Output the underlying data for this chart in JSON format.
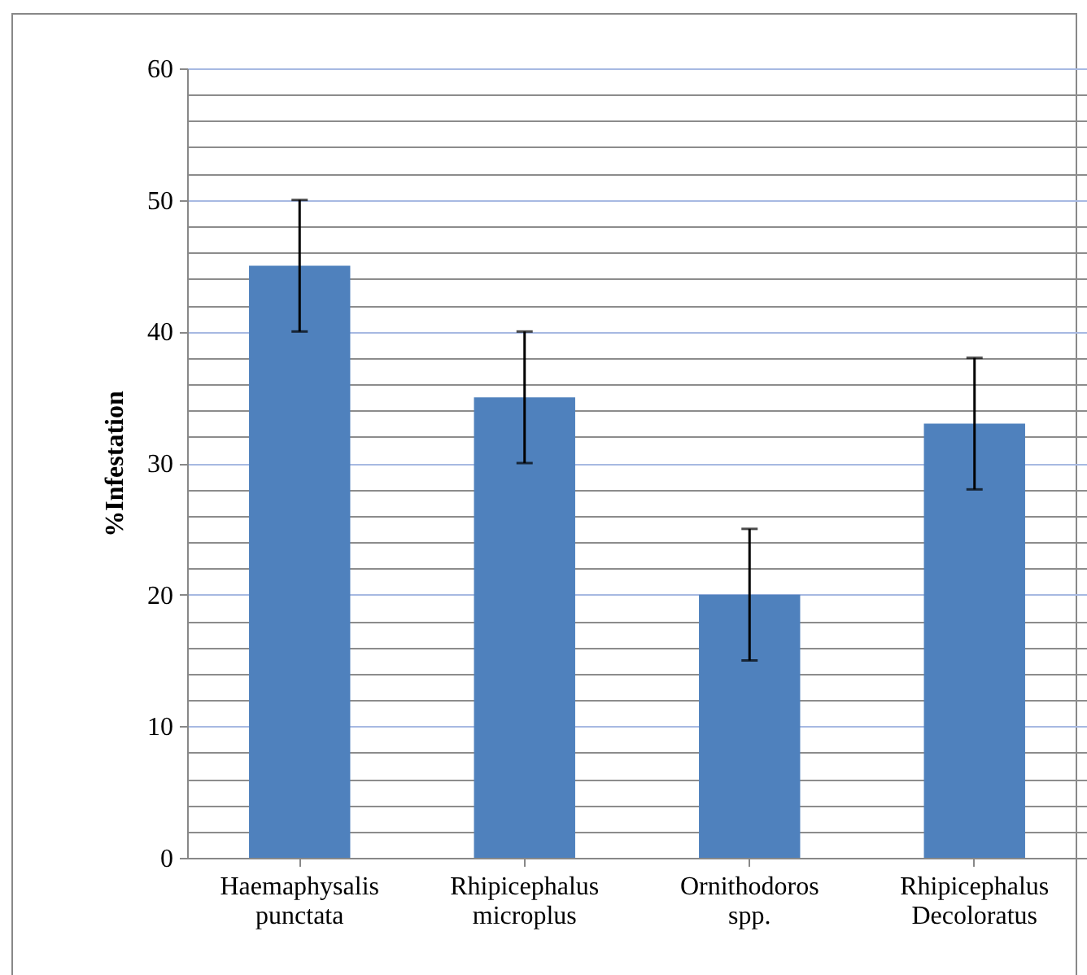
{
  "chart_data": {
    "type": "bar",
    "ylabel": "%Infestation",
    "categories": [
      "Haemaphysalis punctata",
      "Rhipicephalus microplus",
      "Ornithodoros spp.",
      "Rhipicephalus Decoloratus"
    ],
    "values": [
      45,
      35,
      20,
      33
    ],
    "errors": [
      5,
      5,
      5,
      5
    ],
    "color": "#4f81bd",
    "ylim": [
      0,
      60
    ],
    "yticks": [
      0,
      {
        "value": 2,
        "label": null
      },
      {
        "value": 4,
        "label": null
      },
      {
        "value": 6,
        "label": null
      },
      {
        "value": 8,
        "label": null
      },
      10,
      {
        "value": 12,
        "label": null
      },
      {
        "value": 14,
        "label": null
      },
      {
        "value": 16,
        "label": null
      },
      {
        "value": 18,
        "label": null
      },
      20,
      {
        "value": 22,
        "label": null
      },
      {
        "value": 24,
        "label": null
      },
      {
        "value": 26,
        "label": null
      },
      {
        "value": 28,
        "label": null
      },
      30,
      {
        "value": 32,
        "label": null
      },
      {
        "value": 34,
        "label": null
      },
      {
        "value": 36,
        "label": null
      },
      {
        "value": 38,
        "label": null
      },
      40,
      {
        "value": 42,
        "label": null
      },
      {
        "value": 44,
        "label": null
      },
      {
        "value": 46,
        "label": null
      },
      {
        "value": 48,
        "label": null
      },
      50,
      {
        "value": 52,
        "label": null
      },
      {
        "value": 54,
        "label": null
      },
      {
        "value": 56,
        "label": null
      },
      {
        "value": 58,
        "label": null
      },
      60
    ],
    "grid": true
  }
}
